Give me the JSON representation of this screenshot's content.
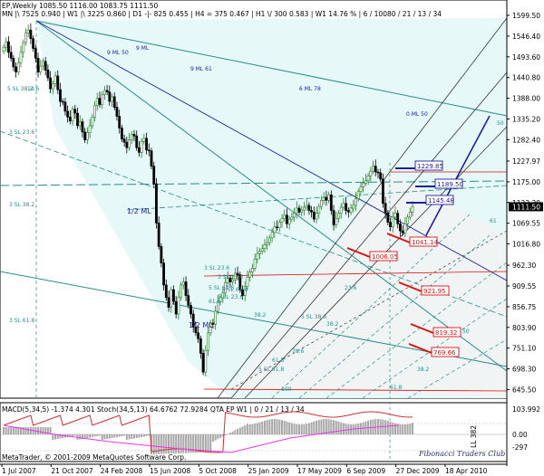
{
  "header": {
    "line1": "EP,Weekly  1085.50  1116.00  1083.75  1111.50",
    "line2": "MN  |\\ 7525   0.940   |  W1 |\\ 3225   0.860   |  D1 -|- 825   0.455   |  H4 = 375   0.467   |  H1 \\/ 300   0.583   |  W1   14.76  %   |  6 / 10080 / 21 / 13 / 34"
  },
  "indicator": {
    "label": "MACD(5,34,5) -1.374 4.301  Stoch(34,5,13) 64.6762 72.9284  QTA EP W1  |  0 / 21 / 13 / 34",
    "copyright": "MetaTrader, © 2001-2009 MetaQuotes Software Corp.",
    "watermark": "Fibonacci Traders Club",
    "side_label": "LL 382",
    "ticks": [
      "103.992",
      "0.00",
      "-297"
    ]
  },
  "colors": {
    "background": "#ffffff",
    "fill": "#e6f8f8",
    "bull": "#2b7d2b",
    "bear": "#000000",
    "fan": "#2a8c8c",
    "navy": "#1f1f9a",
    "red": "#dd1111",
    "macd_hist": "#a8a8a8",
    "signal": "#cc3333",
    "stoch": "#ee33ee"
  },
  "chart_data": {
    "type": "candlestick",
    "title": "EP,Weekly",
    "ylim": [
      623.5,
      1620.0
    ],
    "y_ticks": [
      "1599.50",
      "1546.40",
      "1493.60",
      "1440.80",
      "1388.00",
      "1335.20",
      "1282.40",
      "1227.97",
      "1175.00",
      "1122.30",
      "1069.55",
      "1016.80",
      "962.30",
      "909.55",
      "856.75",
      "803.90",
      "751.10",
      "698.30",
      "645.50"
    ],
    "x_ticks": [
      "1 Jul 2007",
      "21 Oct 2007",
      "24 Feb 2008",
      "15 Jun 2008",
      "5 Oct 2008",
      "25 Jan 2009",
      "17 May 2009",
      "6 Sep 2009",
      "27 Dec 2009",
      "18 Apr 2010"
    ],
    "current_price": "1111.50",
    "ohlc": [
      1085.5,
      1116.0,
      1083.75,
      1111.5
    ],
    "price_boxes": [
      {
        "label": "1229.85",
        "color": "#1f1f9a"
      },
      {
        "label": "1189.50",
        "color": "#1f1f9a"
      },
      {
        "label": "1145.48",
        "color": "#1f1f9a"
      },
      {
        "label": "1041.14",
        "color": "#dd1111"
      },
      {
        "label": "1006.05",
        "color": "#dd1111"
      },
      {
        "label": "921.95",
        "color": "#dd1111"
      },
      {
        "label": "819.32",
        "color": "#dd1111"
      },
      {
        "label": "769.66",
        "color": "#dd1111"
      }
    ],
    "fib_labels": [
      "1/2 ML",
      "3 SL 23.6",
      "3 SL 38.2",
      "3 SL 61.8",
      "9 ML 50",
      "9 ML 61",
      "0 ML 50",
      "6 ML 78",
      "5 SL 38.2",
      "5 SL 61.8",
      "3 SL 23.6",
      "61.8",
      "38.2",
      "1/2 ML",
      "9 ML",
      "14.6",
      "5 SL 38.6",
      "3 SL 23.6",
      "3 SL 23.6",
      "5 SL 61.8",
      "5 SL 61.8",
      "100",
      "61.8",
      "78.6",
      "38.2",
      "23.6",
      "61.8",
      "38.2",
      "50",
      "61",
      "50"
    ],
    "weekly_closes": [
      1518,
      1532,
      1505,
      1490,
      1468,
      1455,
      1478,
      1505,
      1530,
      1555,
      1562,
      1540,
      1515,
      1490,
      1455,
      1470,
      1482,
      1460,
      1440,
      1412,
      1425,
      1445,
      1410,
      1380,
      1378,
      1355,
      1340,
      1330,
      1360,
      1350,
      1318,
      1328,
      1302,
      1282,
      1300,
      1318,
      1340,
      1370,
      1388,
      1372,
      1398,
      1408,
      1404,
      1380,
      1392,
      1365,
      1342,
      1312,
      1284,
      1276,
      1262,
      1282,
      1296,
      1292,
      1262,
      1250,
      1278,
      1286,
      1256,
      1254,
      1215,
      1170,
      1070,
      1010,
      968,
      912,
      880,
      855,
      900,
      870,
      838,
      880,
      912,
      920,
      885,
      860,
      838,
      805,
      790,
      775,
      738,
      690,
      745,
      790,
      815,
      812,
      845,
      870,
      880,
      892,
      918,
      930,
      920,
      925,
      942,
      938,
      900,
      885,
      908,
      932,
      945,
      955,
      978,
      992,
      998,
      1005,
      1015,
      1020,
      1032,
      1046,
      1060,
      1058,
      1072,
      1082,
      1090,
      1068,
      1080,
      1085,
      1095,
      1108,
      1098,
      1103,
      1110,
      1115,
      1102,
      1098,
      1080,
      1095,
      1112,
      1128,
      1135,
      1128,
      1142,
      1102,
      1065,
      1082,
      1095,
      1110,
      1120,
      1102,
      1098,
      1108,
      1115,
      1132,
      1150,
      1162,
      1172,
      1178,
      1190,
      1202,
      1215,
      1200,
      1198,
      1182,
      1120,
      1095,
      1072,
      1060,
      1085,
      1095,
      1068,
      1050,
      1045,
      1068,
      1085,
      1098,
      1111.5
    ]
  }
}
